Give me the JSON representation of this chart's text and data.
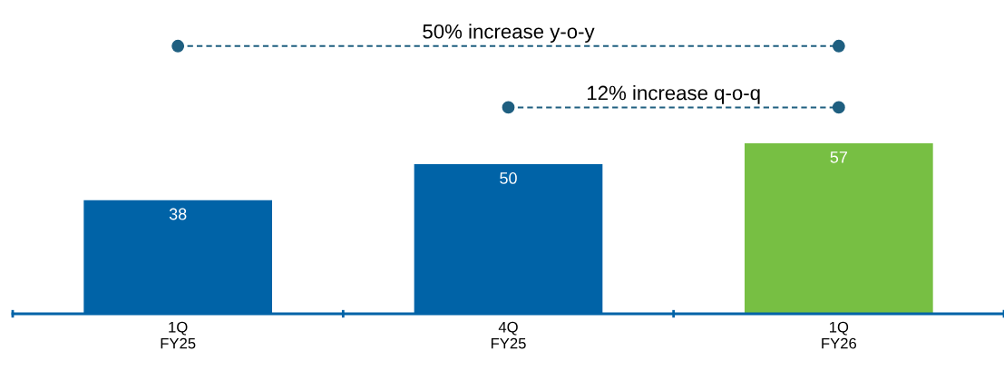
{
  "chart_data": {
    "type": "bar",
    "categories": [
      "1Q\nFY25",
      "4Q\nFY25",
      "1Q\nFY26"
    ],
    "values": [
      38,
      50,
      57
    ],
    "colors": [
      "#0063a7",
      "#0063a7",
      "#77bf43"
    ],
    "data_labels": true,
    "legend": false,
    "grid": false,
    "annotations": [
      "50% increase y-o-y",
      "12% increase q-o-q"
    ]
  }
}
